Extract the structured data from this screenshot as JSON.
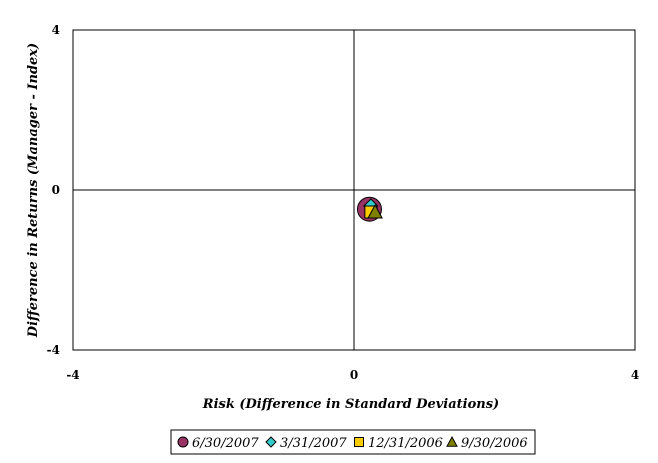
{
  "chart_data": {
    "type": "scatter",
    "title": "",
    "xlabel": "Risk (Difference in Standard Deviations)",
    "ylabel": "Difference in Returns (Manager - Index)",
    "xlim": [
      -4,
      4
    ],
    "ylim": [
      -4,
      4
    ],
    "x_ticks": [
      "-4",
      "0",
      "4"
    ],
    "y_ticks": [
      "4",
      "0",
      "-4"
    ],
    "grid": false,
    "legend_position": "bottom",
    "series": [
      {
        "name": "6/30/2007",
        "marker": "circle",
        "color": "#993366",
        "x": [
          0.22
        ],
        "y": [
          -0.48
        ]
      },
      {
        "name": "3/31/2007",
        "marker": "diamond",
        "color": "#33CCCC",
        "x": [
          0.24
        ],
        "y": [
          -0.4
        ]
      },
      {
        "name": "12/31/2006",
        "marker": "square",
        "color": "#FFCC00",
        "x": [
          0.24
        ],
        "y": [
          -0.55
        ]
      },
      {
        "name": "9/30/2006",
        "marker": "triangle",
        "color": "#808000",
        "x": [
          0.3
        ],
        "y": [
          -0.55
        ]
      }
    ]
  }
}
